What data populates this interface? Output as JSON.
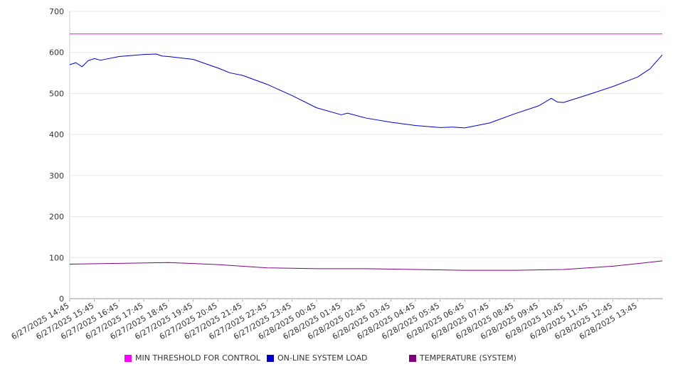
{
  "chart_data": {
    "type": "line",
    "title": "",
    "xlabel": "",
    "ylabel": "",
    "ylim": [
      0,
      700
    ],
    "yticks": [
      0,
      100,
      200,
      300,
      400,
      500,
      600,
      700
    ],
    "x_start": "6/27/2025 14:45",
    "x_end": "6/28/2025 14:45",
    "x_tick_labels": [
      "6/27/2025 14:45",
      "6/27/2025 15:45",
      "6/27/2025 16:45",
      "6/27/2025 17:45",
      "6/27/2025 18:45",
      "6/27/2025 19:45",
      "6/27/2025 20:45",
      "6/27/2025 21:45",
      "6/27/2025 22:45",
      "6/27/2025 23:45",
      "6/28/2025 00:45",
      "6/28/2025 01:45",
      "6/28/2025 02:45",
      "6/28/2025 03:45",
      "6/28/2025 04:45",
      "6/28/2025 05:45",
      "6/28/2025 06:45",
      "6/28/2025 07:45",
      "6/28/2025 08:45",
      "6/28/2025 09:45",
      "6/28/2025 10:45",
      "6/28/2025 11:45",
      "6/28/2025 12:45",
      "6/28/2025 13:45"
    ],
    "grid": true,
    "legend_position": "bottom",
    "series": [
      {
        "name": "MIN THRESHOLD FOR CONTROL",
        "color": "#ff00ff",
        "points": [
          [
            "6/27/2025 14:45",
            645
          ],
          [
            "6/28/2025 14:45",
            645
          ]
        ]
      },
      {
        "name": "ON-LINE SYSTEM LOAD",
        "color": "#0000cc",
        "points": [
          [
            "6/27/2025 14:45",
            570
          ],
          [
            "6/27/2025 15:00",
            575
          ],
          [
            "6/27/2025 15:15",
            565
          ],
          [
            "6/27/2025 15:30",
            580
          ],
          [
            "6/27/2025 15:45",
            585
          ],
          [
            "6/27/2025 16:00",
            581
          ],
          [
            "6/27/2025 16:45",
            590
          ],
          [
            "6/27/2025 17:45",
            595
          ],
          [
            "6/27/2025 18:15",
            596
          ],
          [
            "6/27/2025 18:30",
            591
          ],
          [
            "6/27/2025 18:45",
            590
          ],
          [
            "6/27/2025 19:45",
            583
          ],
          [
            "6/27/2025 20:45",
            562
          ],
          [
            "6/27/2025 21:15",
            550
          ],
          [
            "6/27/2025 21:45",
            544
          ],
          [
            "6/27/2025 22:45",
            522
          ],
          [
            "6/27/2025 23:45",
            495
          ],
          [
            "6/28/2025 00:45",
            465
          ],
          [
            "6/28/2025 01:45",
            448
          ],
          [
            "6/28/2025 02:00",
            452
          ],
          [
            "6/28/2025 02:45",
            440
          ],
          [
            "6/28/2025 03:45",
            430
          ],
          [
            "6/28/2025 04:45",
            422
          ],
          [
            "6/28/2025 05:45",
            417
          ],
          [
            "6/28/2025 06:15",
            418
          ],
          [
            "6/28/2025 06:45",
            416
          ],
          [
            "6/28/2025 07:45",
            428
          ],
          [
            "6/28/2025 08:45",
            450
          ],
          [
            "6/28/2025 09:45",
            470
          ],
          [
            "6/28/2025 10:15",
            488
          ],
          [
            "6/28/2025 10:30",
            479
          ],
          [
            "6/28/2025 10:45",
            478
          ],
          [
            "6/28/2025 11:45",
            497
          ],
          [
            "6/28/2025 12:45",
            517
          ],
          [
            "6/28/2025 13:45",
            540
          ],
          [
            "6/28/2025 14:15",
            560
          ],
          [
            "6/28/2025 14:45",
            594
          ]
        ]
      },
      {
        "name": "TEMPERATURE (SYSTEM)",
        "color": "#800080",
        "points": [
          [
            "6/27/2025 14:45",
            84
          ],
          [
            "6/27/2025 16:45",
            86
          ],
          [
            "6/27/2025 18:45",
            88
          ],
          [
            "6/27/2025 20:45",
            83
          ],
          [
            "6/27/2025 22:45",
            75
          ],
          [
            "6/28/2025 00:45",
            73
          ],
          [
            "6/28/2025 02:45",
            73
          ],
          [
            "6/28/2025 04:45",
            71
          ],
          [
            "6/28/2025 06:45",
            69
          ],
          [
            "6/28/2025 08:45",
            69
          ],
          [
            "6/28/2025 10:45",
            71
          ],
          [
            "6/28/2025 12:45",
            79
          ],
          [
            "6/28/2025 14:45",
            92
          ]
        ]
      }
    ]
  }
}
